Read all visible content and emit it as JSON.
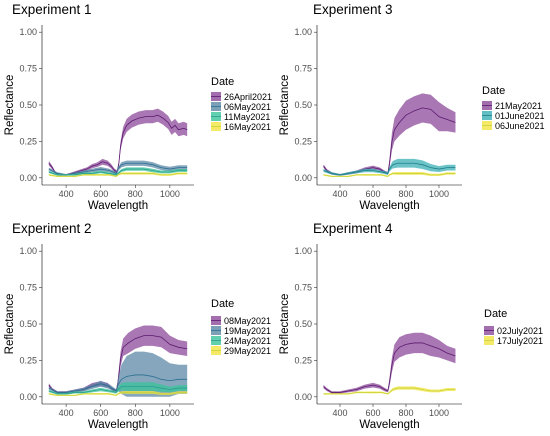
{
  "chart_data": [
    {
      "type": "line",
      "title": "Experiment 1",
      "xlabel": "Wavelength",
      "ylabel": "Reflectance",
      "xlim": [
        300,
        1100
      ],
      "ylim": [
        0,
        1
      ],
      "xticks": [
        "400",
        "600",
        "800",
        "1000"
      ],
      "yticks": [
        "0.00",
        "0.25",
        "0.50",
        "0.75",
        "1.00"
      ],
      "grid": false,
      "legend": {
        "title": "Date",
        "position": "right"
      },
      "series": [
        {
          "name": "26April2021",
          "color": "#5b1a6e",
          "band_color": "#8c4a9a",
          "x": [
            300,
            320,
            340,
            360,
            380,
            400,
            430,
            460,
            490,
            520,
            550,
            580,
            610,
            640,
            660,
            680,
            695,
            705,
            715,
            730,
            750,
            780,
            820,
            860,
            900,
            930,
            960,
            990,
            1010,
            1030,
            1050,
            1080,
            1100
          ],
          "y": [
            0.1,
            0.07,
            0.03,
            0.02,
            0.02,
            0.02,
            0.03,
            0.04,
            0.05,
            0.06,
            0.08,
            0.09,
            0.11,
            0.1,
            0.08,
            0.05,
            0.04,
            0.1,
            0.22,
            0.31,
            0.36,
            0.39,
            0.41,
            0.42,
            0.42,
            0.43,
            0.41,
            0.38,
            0.34,
            0.36,
            0.33,
            0.34,
            0.33
          ],
          "band": [
            0.015,
            0.012,
            0.008,
            0.006,
            0.006,
            0.006,
            0.006,
            0.008,
            0.01,
            0.012,
            0.014,
            0.016,
            0.02,
            0.018,
            0.015,
            0.012,
            0.012,
            0.02,
            0.03,
            0.04,
            0.045,
            0.045,
            0.045,
            0.045,
            0.045,
            0.045,
            0.045,
            0.045,
            0.045,
            0.045,
            0.045,
            0.045,
            0.045
          ]
        },
        {
          "name": "06May2021",
          "color": "#2a6f8f",
          "band_color": "#5d88a8",
          "x": [
            300,
            350,
            400,
            450,
            500,
            550,
            600,
            650,
            690,
            700,
            720,
            750,
            800,
            850,
            900,
            950,
            1000,
            1050,
            1100
          ],
          "y": [
            0.06,
            0.03,
            0.02,
            0.03,
            0.04,
            0.05,
            0.06,
            0.05,
            0.03,
            0.06,
            0.09,
            0.1,
            0.1,
            0.1,
            0.09,
            0.07,
            0.06,
            0.07,
            0.07
          ],
          "band": [
            0.01,
            0.008,
            0.006,
            0.008,
            0.01,
            0.012,
            0.014,
            0.012,
            0.01,
            0.014,
            0.018,
            0.018,
            0.018,
            0.018,
            0.018,
            0.016,
            0.016,
            0.016,
            0.016
          ]
        },
        {
          "name": "11May2021",
          "color": "#2a9d8f",
          "band_color": "#38c49a",
          "x": [
            300,
            350,
            400,
            450,
            500,
            550,
            600,
            650,
            690,
            700,
            720,
            750,
            800,
            850,
            900,
            950,
            1000,
            1050,
            1100
          ],
          "y": [
            0.04,
            0.02,
            0.02,
            0.02,
            0.03,
            0.03,
            0.04,
            0.03,
            0.02,
            0.03,
            0.05,
            0.06,
            0.06,
            0.06,
            0.05,
            0.04,
            0.04,
            0.05,
            0.05
          ],
          "band": [
            0.008,
            0.006,
            0.005,
            0.006,
            0.007,
            0.008,
            0.009,
            0.008,
            0.007,
            0.009,
            0.01,
            0.012,
            0.012,
            0.012,
            0.012,
            0.01,
            0.01,
            0.01,
            0.01
          ]
        },
        {
          "name": "16May2021",
          "color": "#c8d43a",
          "band_color": "#f2e442",
          "x": [
            300,
            350,
            400,
            450,
            500,
            550,
            600,
            650,
            690,
            700,
            720,
            750,
            800,
            850,
            900,
            950,
            1000,
            1050,
            1100
          ],
          "y": [
            0.02,
            0.01,
            0.01,
            0.01,
            0.02,
            0.02,
            0.02,
            0.02,
            0.01,
            0.02,
            0.03,
            0.03,
            0.03,
            0.03,
            0.03,
            0.02,
            0.02,
            0.03,
            0.03
          ],
          "band": [
            0.006,
            0.005,
            0.004,
            0.005,
            0.005,
            0.006,
            0.006,
            0.006,
            0.005,
            0.006,
            0.007,
            0.008,
            0.008,
            0.008,
            0.008,
            0.007,
            0.007,
            0.007,
            0.007
          ]
        }
      ]
    },
    {
      "type": "line",
      "title": "Experiment 3",
      "xlabel": "Wavelength",
      "ylabel": "Reflectance",
      "xlim": [
        300,
        1100
      ],
      "ylim": [
        0,
        1
      ],
      "xticks": [
        "400",
        "600",
        "800",
        "1000"
      ],
      "yticks": [
        "0.00",
        "0.25",
        "0.50",
        "0.75",
        "1.00"
      ],
      "grid": false,
      "legend": {
        "title": "Date",
        "position": "right"
      },
      "series": [
        {
          "name": "21May2021",
          "color": "#5b1a6e",
          "band_color": "#8c4a9a",
          "x": [
            300,
            320,
            350,
            400,
            450,
            500,
            550,
            600,
            640,
            670,
            690,
            700,
            715,
            730,
            760,
            800,
            850,
            900,
            950,
            1000,
            1050,
            1100
          ],
          "y": [
            0.08,
            0.05,
            0.03,
            0.02,
            0.03,
            0.04,
            0.06,
            0.07,
            0.06,
            0.04,
            0.03,
            0.1,
            0.25,
            0.33,
            0.38,
            0.43,
            0.46,
            0.48,
            0.47,
            0.42,
            0.4,
            0.38
          ],
          "band": [
            0.012,
            0.01,
            0.008,
            0.006,
            0.008,
            0.01,
            0.012,
            0.014,
            0.012,
            0.01,
            0.01,
            0.03,
            0.06,
            0.08,
            0.09,
            0.1,
            0.1,
            0.1,
            0.1,
            0.1,
            0.08,
            0.07
          ]
        },
        {
          "name": "01June2021",
          "color": "#1f7f88",
          "band_color": "#3aafb5",
          "x": [
            300,
            350,
            400,
            450,
            500,
            550,
            600,
            650,
            690,
            700,
            720,
            750,
            800,
            850,
            900,
            950,
            1000,
            1050,
            1100
          ],
          "y": [
            0.05,
            0.03,
            0.02,
            0.03,
            0.04,
            0.05,
            0.05,
            0.04,
            0.03,
            0.06,
            0.09,
            0.1,
            0.1,
            0.1,
            0.09,
            0.07,
            0.06,
            0.07,
            0.07
          ],
          "band": [
            0.01,
            0.008,
            0.006,
            0.008,
            0.01,
            0.012,
            0.012,
            0.01,
            0.01,
            0.015,
            0.025,
            0.03,
            0.03,
            0.03,
            0.03,
            0.025,
            0.02,
            0.02,
            0.02
          ]
        },
        {
          "name": "06June2021",
          "color": "#c8d43a",
          "band_color": "#f2e442",
          "x": [
            300,
            350,
            400,
            450,
            500,
            550,
            600,
            650,
            690,
            700,
            720,
            750,
            800,
            850,
            900,
            950,
            1000,
            1050,
            1100
          ],
          "y": [
            0.02,
            0.01,
            0.01,
            0.01,
            0.02,
            0.02,
            0.02,
            0.02,
            0.01,
            0.02,
            0.03,
            0.03,
            0.03,
            0.03,
            0.03,
            0.02,
            0.02,
            0.03,
            0.03
          ],
          "band": [
            0.006,
            0.005,
            0.004,
            0.005,
            0.005,
            0.006,
            0.006,
            0.006,
            0.005,
            0.006,
            0.008,
            0.01,
            0.01,
            0.01,
            0.01,
            0.008,
            0.008,
            0.008,
            0.008
          ]
        }
      ]
    },
    {
      "type": "line",
      "title": "Experiment 2",
      "xlabel": "Wavelength",
      "ylabel": "Reflectance",
      "xlim": [
        300,
        1100
      ],
      "ylim": [
        0,
        1
      ],
      "xticks": [
        "400",
        "600",
        "800",
        "1000"
      ],
      "yticks": [
        "0.00",
        "0.25",
        "0.50",
        "0.75",
        "1.00"
      ],
      "grid": false,
      "legend": {
        "title": "Date",
        "position": "right"
      },
      "series": [
        {
          "name": "08May2021",
          "color": "#5b1a6e",
          "band_color": "#8c4a9a",
          "x": [
            300,
            320,
            350,
            400,
            450,
            500,
            550,
            600,
            640,
            670,
            690,
            700,
            715,
            730,
            760,
            800,
            850,
            900,
            950,
            1000,
            1050,
            1100
          ],
          "y": [
            0.08,
            0.05,
            0.03,
            0.03,
            0.04,
            0.05,
            0.08,
            0.09,
            0.08,
            0.05,
            0.04,
            0.1,
            0.26,
            0.34,
            0.37,
            0.4,
            0.42,
            0.42,
            0.41,
            0.36,
            0.34,
            0.33
          ],
          "band": [
            0.012,
            0.01,
            0.008,
            0.008,
            0.01,
            0.012,
            0.015,
            0.018,
            0.016,
            0.012,
            0.01,
            0.03,
            0.05,
            0.06,
            0.07,
            0.07,
            0.07,
            0.07,
            0.07,
            0.06,
            0.05,
            0.05
          ]
        },
        {
          "name": "19May2021",
          "color": "#2a6f8f",
          "band_color": "#5d88a8",
          "x": [
            300,
            350,
            400,
            450,
            500,
            550,
            600,
            650,
            690,
            700,
            720,
            750,
            800,
            850,
            900,
            950,
            1000,
            1050,
            1100
          ],
          "y": [
            0.06,
            0.03,
            0.03,
            0.04,
            0.05,
            0.07,
            0.09,
            0.07,
            0.04,
            0.08,
            0.12,
            0.14,
            0.15,
            0.15,
            0.14,
            0.12,
            0.11,
            0.12,
            0.12
          ],
          "band": [
            0.01,
            0.008,
            0.008,
            0.01,
            0.012,
            0.016,
            0.02,
            0.016,
            0.012,
            0.04,
            0.1,
            0.14,
            0.16,
            0.16,
            0.16,
            0.15,
            0.12,
            0.1,
            0.1
          ]
        },
        {
          "name": "24May2021",
          "color": "#2a9d8f",
          "band_color": "#38c49a",
          "x": [
            300,
            350,
            400,
            450,
            500,
            550,
            600,
            650,
            690,
            700,
            720,
            750,
            800,
            850,
            900,
            950,
            1000,
            1050,
            1100
          ],
          "y": [
            0.04,
            0.02,
            0.02,
            0.03,
            0.03,
            0.04,
            0.05,
            0.04,
            0.03,
            0.05,
            0.07,
            0.07,
            0.07,
            0.07,
            0.07,
            0.06,
            0.05,
            0.06,
            0.06
          ],
          "band": [
            0.008,
            0.006,
            0.006,
            0.007,
            0.008,
            0.01,
            0.012,
            0.01,
            0.008,
            0.015,
            0.025,
            0.03,
            0.03,
            0.03,
            0.03,
            0.025,
            0.02,
            0.02,
            0.02
          ]
        },
        {
          "name": "29May2021",
          "color": "#c8d43a",
          "band_color": "#f2e442",
          "x": [
            300,
            350,
            400,
            450,
            500,
            550,
            600,
            650,
            690,
            700,
            720,
            750,
            800,
            850,
            900,
            950,
            1000,
            1050,
            1100
          ],
          "y": [
            0.02,
            0.01,
            0.01,
            0.01,
            0.02,
            0.02,
            0.02,
            0.02,
            0.01,
            0.02,
            0.03,
            0.03,
            0.03,
            0.03,
            0.03,
            0.02,
            0.02,
            0.03,
            0.03
          ],
          "band": [
            0.006,
            0.005,
            0.004,
            0.005,
            0.005,
            0.006,
            0.006,
            0.006,
            0.005,
            0.006,
            0.008,
            0.01,
            0.01,
            0.01,
            0.01,
            0.008,
            0.008,
            0.008,
            0.008
          ]
        }
      ]
    },
    {
      "type": "line",
      "title": "Experiment 4",
      "xlabel": "Wavelength",
      "ylabel": "Reflectance",
      "xlim": [
        300,
        1100
      ],
      "ylim": [
        0,
        1
      ],
      "xticks": [
        "400",
        "600",
        "800",
        "1000"
      ],
      "yticks": [
        "0.00",
        "0.25",
        "0.50",
        "0.75",
        "1.00"
      ],
      "grid": false,
      "legend": {
        "title": "Date",
        "position": "right"
      },
      "series": [
        {
          "name": "02July2021",
          "color": "#5b1a6e",
          "band_color": "#8c4a9a",
          "x": [
            300,
            320,
            350,
            400,
            450,
            500,
            550,
            600,
            640,
            670,
            690,
            700,
            715,
            730,
            760,
            800,
            850,
            900,
            950,
            1000,
            1050,
            1100
          ],
          "y": [
            0.07,
            0.05,
            0.03,
            0.03,
            0.04,
            0.05,
            0.07,
            0.08,
            0.07,
            0.05,
            0.04,
            0.1,
            0.22,
            0.3,
            0.34,
            0.36,
            0.37,
            0.37,
            0.35,
            0.33,
            0.3,
            0.28
          ],
          "band": [
            0.012,
            0.01,
            0.008,
            0.008,
            0.01,
            0.012,
            0.014,
            0.016,
            0.014,
            0.012,
            0.01,
            0.03,
            0.05,
            0.06,
            0.07,
            0.07,
            0.07,
            0.07,
            0.07,
            0.06,
            0.05,
            0.05
          ]
        },
        {
          "name": "17July2021",
          "color": "#c8d43a",
          "band_color": "#f2e442",
          "x": [
            300,
            350,
            400,
            450,
            500,
            550,
            600,
            650,
            690,
            700,
            720,
            750,
            800,
            850,
            900,
            950,
            1000,
            1050,
            1100
          ],
          "y": [
            0.02,
            0.02,
            0.02,
            0.02,
            0.03,
            0.03,
            0.03,
            0.03,
            0.02,
            0.03,
            0.05,
            0.06,
            0.06,
            0.06,
            0.05,
            0.04,
            0.04,
            0.05,
            0.05
          ],
          "band": [
            0.006,
            0.005,
            0.005,
            0.005,
            0.006,
            0.006,
            0.007,
            0.006,
            0.005,
            0.007,
            0.01,
            0.012,
            0.012,
            0.012,
            0.012,
            0.01,
            0.01,
            0.01,
            0.01
          ]
        }
      ]
    }
  ]
}
